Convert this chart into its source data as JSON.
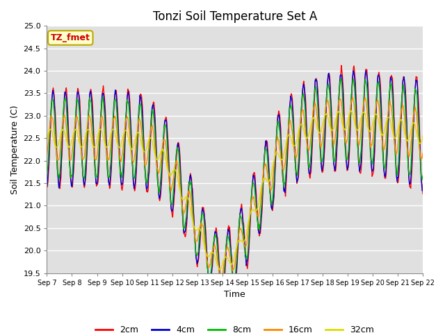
{
  "title": "Tonzi Soil Temperature Set A",
  "xlabel": "Time",
  "ylabel": "Soil Temperature (C)",
  "ylim": [
    19.5,
    25.0
  ],
  "yticks": [
    19.5,
    20.0,
    20.5,
    21.0,
    21.5,
    22.0,
    22.5,
    23.0,
    23.5,
    24.0,
    24.5,
    25.0
  ],
  "x_labels": [
    "Sep 7",
    "Sep 8",
    "Sep 9",
    "Sep 10",
    "Sep 11",
    "Sep 12",
    "Sep 13",
    "Sep 14",
    "Sep 15",
    "Sep 16",
    "Sep 17",
    "Sep 18",
    "Sep 19",
    "Sep 20",
    "Sep 21",
    "Sep 22"
  ],
  "colors": {
    "2cm": "#ff0000",
    "4cm": "#0000cc",
    "8cm": "#00bb00",
    "16cm": "#ff8800",
    "32cm": "#dddd00"
  },
  "legend_labels": [
    "2cm",
    "4cm",
    "8cm",
    "16cm",
    "32cm"
  ],
  "annotation_text": "TZ_fmet",
  "annotation_color": "#cc0000",
  "annotation_bg": "#ffffcc",
  "annotation_border": "#bbaa00",
  "plot_bg": "#e0e0e0"
}
